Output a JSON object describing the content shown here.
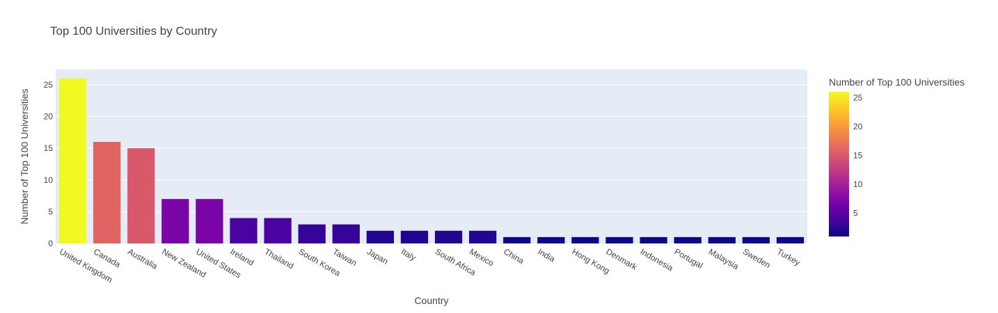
{
  "chart_data": {
    "type": "bar",
    "title": "Top 100 Universities by Country",
    "xlabel": "Country",
    "ylabel": "Number of Top 100 Universities",
    "categories": [
      "United Kingdom",
      "Canada",
      "Australia",
      "New Zealand",
      "United States",
      "Ireland",
      "Thailand",
      "South Korea",
      "Taiwan",
      "Japan",
      "Italy",
      "South Africa",
      "Mexico",
      "China",
      "India",
      "Hong Kong",
      "Denmark",
      "Indonesia",
      "Portugal",
      "Malaysia",
      "Sweden",
      "Turkey"
    ],
    "values": [
      26,
      16,
      15,
      7,
      7,
      4,
      4,
      3,
      3,
      2,
      2,
      2,
      2,
      1,
      1,
      1,
      1,
      1,
      1,
      1,
      1,
      1
    ],
    "ylim": [
      0,
      27.4
    ],
    "yticks": [
      0,
      5,
      10,
      15,
      20,
      25
    ],
    "grid": true,
    "colorbar": {
      "title": "Number of Top 100 Universities",
      "range": [
        1,
        26
      ],
      "ticks": [
        5,
        10,
        15,
        20,
        25
      ],
      "colorscale": "Plasma"
    },
    "colors": {
      "plot_bg": "#E5ECF6",
      "grid": "#FFFFFF",
      "text": "#444444"
    }
  }
}
